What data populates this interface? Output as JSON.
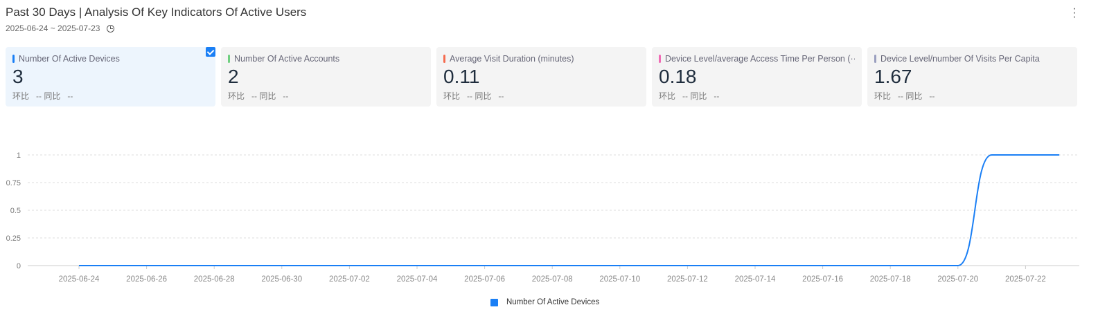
{
  "header": {
    "title": "Past 30 Days | Analysis Of Key Indicators Of Active Users",
    "date_range": "2025-06-24 ~ 2025-07-23",
    "more_icon": "more-vertical-icon",
    "clock_icon": "clock-icon"
  },
  "cards": [
    {
      "label": "Number Of Active Devices",
      "value": "3",
      "mom_label": "环比",
      "mom": "--",
      "yoy_label": "同比",
      "yoy": "--",
      "color": "#1a7ff5",
      "selected": true
    },
    {
      "label": "Number Of Active Accounts",
      "value": "2",
      "mom_label": "环比",
      "mom": "--",
      "yoy_label": "同比",
      "yoy": "--",
      "color": "#6fcf7f",
      "selected": false
    },
    {
      "label": "Average Visit Duration (minutes)",
      "value": "0.11",
      "mom_label": "环比",
      "mom": "--",
      "yoy_label": "同比",
      "yoy": "--",
      "color": "#f56b4f",
      "selected": false
    },
    {
      "label": "Device Level/average Access Time Per Person (···",
      "value": "0.18",
      "mom_label": "环比",
      "mom": "--",
      "yoy_label": "同比",
      "yoy": "--",
      "color": "#f06bb5",
      "selected": false
    },
    {
      "label": "Device Level/number Of Visits Per Capita",
      "value": "1.67",
      "mom_label": "环比",
      "mom": "--",
      "yoy_label": "同比",
      "yoy": "--",
      "color": "#9a9fbf",
      "selected": false
    }
  ],
  "chart_data": {
    "type": "line",
    "smooth": true,
    "grid": true,
    "legend_position": "bottom",
    "x": [
      "2025-06-24",
      "2025-06-25",
      "2025-06-26",
      "2025-06-27",
      "2025-06-28",
      "2025-06-29",
      "2025-06-30",
      "2025-07-01",
      "2025-07-02",
      "2025-07-03",
      "2025-07-04",
      "2025-07-05",
      "2025-07-06",
      "2025-07-07",
      "2025-07-08",
      "2025-07-09",
      "2025-07-10",
      "2025-07-11",
      "2025-07-12",
      "2025-07-13",
      "2025-07-14",
      "2025-07-15",
      "2025-07-16",
      "2025-07-17",
      "2025-07-18",
      "2025-07-19",
      "2025-07-20",
      "2025-07-21",
      "2025-07-22",
      "2025-07-23"
    ],
    "x_tick_labels": [
      "2025-06-24",
      "2025-06-26",
      "2025-06-28",
      "2025-06-30",
      "2025-07-02",
      "2025-07-04",
      "2025-07-06",
      "2025-07-08",
      "2025-07-10",
      "2025-07-12",
      "2025-07-14",
      "2025-07-16",
      "2025-07-18",
      "2025-07-20",
      "2025-07-22"
    ],
    "y_tick_labels": [
      "0",
      "0.25",
      "0.5",
      "0.75",
      "1"
    ],
    "ylim": [
      0,
      1
    ],
    "series": [
      {
        "name": "Number Of Active Devices",
        "color": "#1a7ff5",
        "values": [
          0,
          0,
          0,
          0,
          0,
          0,
          0,
          0,
          0,
          0,
          0,
          0,
          0,
          0,
          0,
          0,
          0,
          0,
          0,
          0,
          0,
          0,
          0,
          0,
          0,
          0,
          0,
          1,
          1,
          1
        ]
      }
    ]
  }
}
